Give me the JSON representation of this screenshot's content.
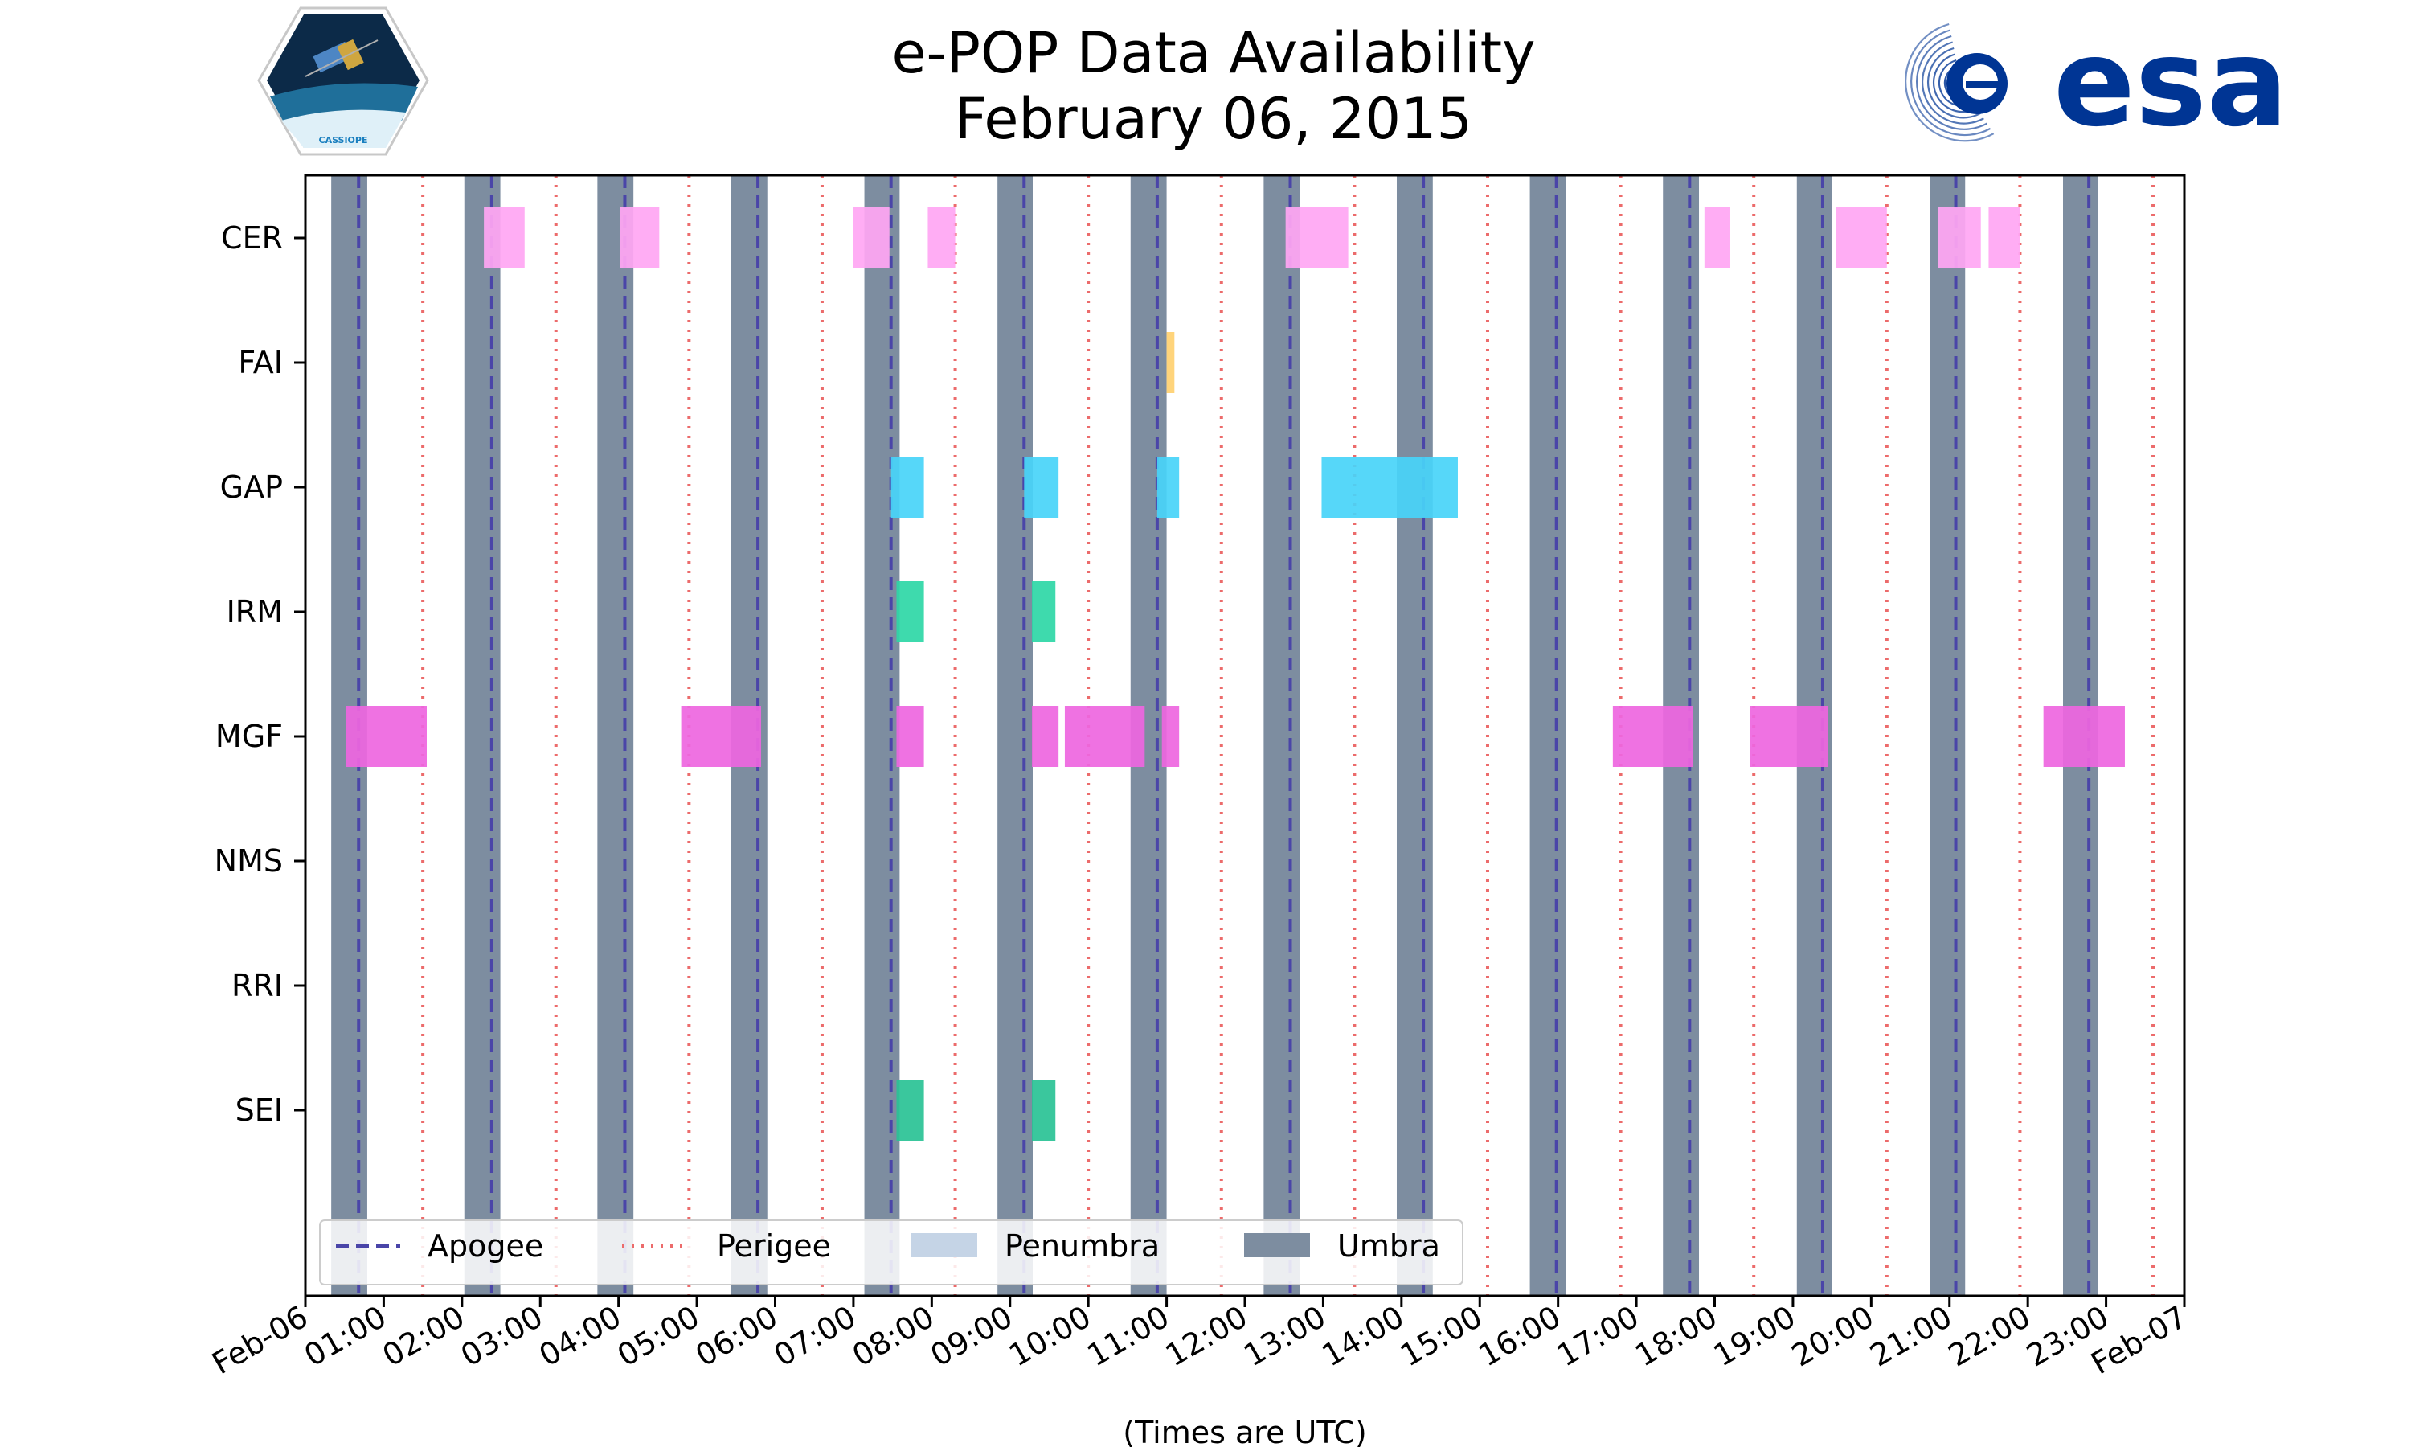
{
  "colors": {
    "umbra": "#7d8da0",
    "penumbra": "#c5d4e6",
    "apogee": "#4a45a8",
    "perigee": "#ec6b6b",
    "CER": "#ffa6f3",
    "FAI": "#ffd070",
    "GAP": "#48d4f8",
    "IRM": "#2ed7a6",
    "MGF": "#ee66df",
    "SEI": "#29c295",
    "esa": "#003594"
  },
  "logos": {
    "left_label": "CASSIOPE",
    "right_label": "esa"
  },
  "chart_data": {
    "type": "timeline",
    "title": "e-POP Data Availability",
    "subtitle": "February 06, 2015",
    "xlabel": "(Times are UTC)",
    "xlim_hours": [
      0,
      24
    ],
    "x_tick_labels": [
      "Feb-06",
      "01:00",
      "02:00",
      "03:00",
      "04:00",
      "05:00",
      "06:00",
      "07:00",
      "08:00",
      "09:00",
      "10:00",
      "11:00",
      "12:00",
      "13:00",
      "14:00",
      "15:00",
      "16:00",
      "17:00",
      "18:00",
      "19:00",
      "20:00",
      "21:00",
      "22:00",
      "23:00",
      "Feb-07"
    ],
    "instruments": [
      "CER",
      "FAI",
      "GAP",
      "IRM",
      "MGF",
      "NMS",
      "RRI",
      "SEI"
    ],
    "umbra": [
      [
        0.33,
        0.79
      ],
      [
        2.03,
        2.49
      ],
      [
        3.73,
        4.19
      ],
      [
        5.44,
        5.9
      ],
      [
        7.14,
        7.59
      ],
      [
        8.84,
        9.29
      ],
      [
        10.54,
        11.0
      ],
      [
        12.24,
        12.7
      ],
      [
        13.94,
        14.4
      ],
      [
        15.64,
        16.1
      ],
      [
        17.34,
        17.8
      ],
      [
        19.05,
        19.5
      ],
      [
        20.75,
        21.2
      ],
      [
        22.45,
        22.9
      ]
    ],
    "apogee": [
      0.68,
      2.38,
      4.08,
      5.78,
      7.48,
      9.18,
      10.88,
      12.58,
      14.28,
      15.98,
      17.68,
      19.38,
      21.08,
      22.78
    ],
    "perigee": [
      1.5,
      3.2,
      4.9,
      6.6,
      8.3,
      10.0,
      11.7,
      13.4,
      15.1,
      16.8,
      18.5,
      20.2,
      21.9,
      23.6
    ],
    "data_intervals": {
      "CER": [
        [
          2.28,
          2.8
        ],
        [
          4.02,
          4.52
        ],
        [
          7.0,
          7.46
        ],
        [
          7.95,
          8.3
        ],
        [
          12.52,
          13.32
        ],
        [
          17.87,
          18.2
        ],
        [
          19.55,
          20.2
        ],
        [
          20.85,
          21.4
        ],
        [
          21.5,
          21.9
        ]
      ],
      "FAI": [
        [
          11.0,
          11.1
        ]
      ],
      "GAP": [
        [
          7.48,
          7.9
        ],
        [
          9.18,
          9.62
        ],
        [
          10.88,
          11.16
        ],
        [
          12.98,
          14.72
        ]
      ],
      "IRM": [
        [
          7.55,
          7.9
        ],
        [
          9.28,
          9.58
        ]
      ],
      "MGF": [
        [
          0.52,
          1.55
        ],
        [
          4.8,
          5.82
        ],
        [
          7.55,
          7.9
        ],
        [
          9.28,
          9.62
        ],
        [
          9.7,
          10.72
        ],
        [
          10.94,
          11.16
        ],
        [
          16.7,
          17.72
        ],
        [
          18.45,
          19.45
        ],
        [
          22.2,
          23.24
        ]
      ],
      "NMS": [],
      "RRI": [],
      "SEI": [
        [
          7.55,
          7.9
        ],
        [
          9.28,
          9.58
        ]
      ]
    },
    "legend": {
      "position": "lower-left",
      "entries": [
        {
          "key": "apogee",
          "label": "Apogee"
        },
        {
          "key": "perigee",
          "label": "Perigee"
        },
        {
          "key": "penumbra",
          "label": "Penumbra"
        },
        {
          "key": "umbra",
          "label": "Umbra"
        }
      ]
    }
  }
}
